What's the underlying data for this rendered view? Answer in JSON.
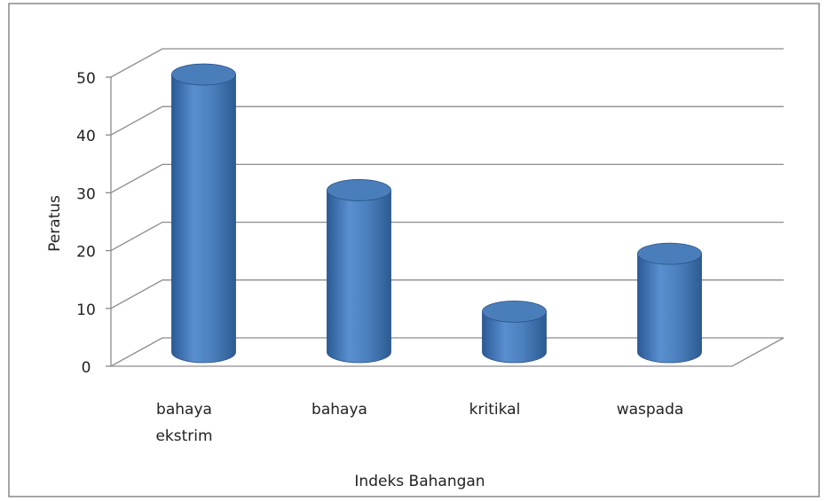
{
  "chart_data": {
    "type": "bar3d-cylinder",
    "xlabel": "Indeks Bahangan",
    "ylabel": "Peratus",
    "categories": [
      "bahaya ekstrim",
      "bahaya",
      "kritikal",
      "waspada"
    ],
    "values": [
      48,
      28,
      7,
      17
    ],
    "color": "#4a7ebb",
    "ylim": [
      0,
      50
    ],
    "yticks": [
      0,
      10,
      20,
      30,
      40,
      50
    ],
    "grid": true
  }
}
